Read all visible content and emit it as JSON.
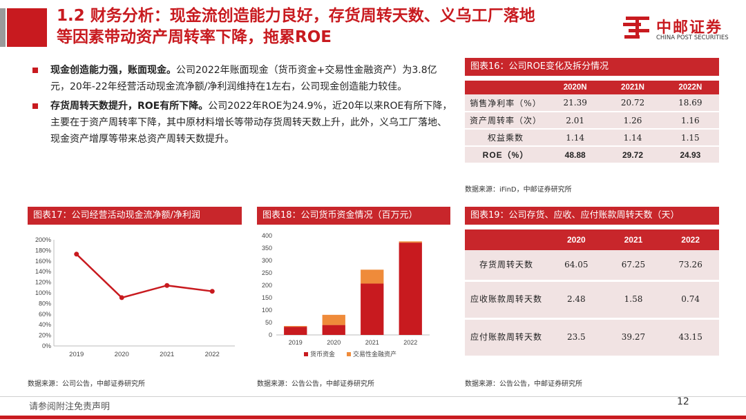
{
  "header": {
    "title_line1": "1.2 财务分析：现金流创造能力良好，存货周转天数、义乌工厂落地",
    "title_line2": "等因素带动资产周转率下降，拖累ROE",
    "logo_cn": "中邮证券",
    "logo_en": "CHINA POST SECURITIES"
  },
  "bullets": [
    {
      "bold": "现金创造能力强，账面现金。",
      "text": "公司2022年账面现金（货币资金+交易性金融资产）为3.8亿元，20年-22年经营活动现金流净额/净利润维持在1左右，公司现金创造能力较佳。"
    },
    {
      "bold": "存货周转天数提升，ROE有所下降。",
      "text": "公司2022年ROE为24.9%，近20年以来ROE有所下降，主要在于资产周转率下降，其中原材料增长等带动存货周转天数上升，此外，义乌工厂落地、现金资产增厚等带来总资产周转天数提升。"
    }
  ],
  "fig16": {
    "title": "图表16：公司ROE变化及拆分情况",
    "headers": [
      "",
      "2020N",
      "2021N",
      "2022N"
    ],
    "rows": [
      [
        "销售净利率（%）",
        "21.39",
        "20.72",
        "18.69"
      ],
      [
        "资产周转率（次）",
        "2.01",
        "1.26",
        "1.16"
      ],
      [
        "权益乘数",
        "1.14",
        "1.14",
        "1.15"
      ],
      [
        "ROE（%）",
        "48.88",
        "29.72",
        "24.93"
      ]
    ],
    "source": "数据来源：iFinD，中邮证券研究所"
  },
  "fig17": {
    "title": "图表17：公司经营活动现金流净额/净利润",
    "source": "数据来源：公司公告，中邮证券研究所"
  },
  "fig18": {
    "title": "图表18：公司货币资金情况（百万元）",
    "source": "数据来源：公告公告，中邮证券研究所"
  },
  "fig19": {
    "title": "图表19：公司存货、应收、应付账款周转天数（天）",
    "headers": [
      "",
      "2020",
      "2021",
      "2022"
    ],
    "rows": [
      [
        "存货周转天数",
        "64.05",
        "67.25",
        "73.26"
      ],
      [
        "应收账款周转天数",
        "2.48",
        "1.58",
        "0.74"
      ],
      [
        "应付账款周转天数",
        "23.5",
        "39.27",
        "43.15"
      ]
    ],
    "source": "数据来源：公告公告，中邮证券研究所"
  },
  "footer": {
    "disclaimer": "请参阅附注免责声明",
    "page": "12"
  },
  "colors": {
    "brand_red": "#c81a1f",
    "table_head": "#c8262b",
    "table_body": "#f1e3e3",
    "series_orange": "#ef8b3a"
  },
  "chart_data": [
    {
      "type": "line",
      "categories": [
        "2019",
        "2020",
        "2021",
        "2022"
      ],
      "series": [
        {
          "values": [
            1.73,
            0.91,
            1.14,
            1.03
          ]
        }
      ],
      "title": "",
      "xlabel": "",
      "ylabel": "",
      "ylim": [
        0,
        2.0
      ],
      "yticks": [
        "0%",
        "20%",
        "40%",
        "60%",
        "80%",
        "100%",
        "120%",
        "140%",
        "160%",
        "180%",
        "200%"
      ],
      "grid": false,
      "color": "#c81a1f"
    },
    {
      "type": "bar",
      "stacked": true,
      "categories": [
        "2019",
        "2020",
        "2021",
        "2022"
      ],
      "series": [
        {
          "name": "货币资金",
          "values": [
            33,
            40,
            207,
            372
          ],
          "color": "#c81a1f"
        },
        {
          "name": "交易性金融资产",
          "values": [
            3,
            41,
            56,
            5
          ],
          "color": "#ef8b3a"
        }
      ],
      "title": "",
      "xlabel": "",
      "ylabel": "",
      "ylim": [
        0,
        400
      ],
      "yticks": [
        0,
        50,
        100,
        150,
        200,
        250,
        300,
        350,
        400
      ],
      "grid": false,
      "legend": "bottom"
    }
  ]
}
